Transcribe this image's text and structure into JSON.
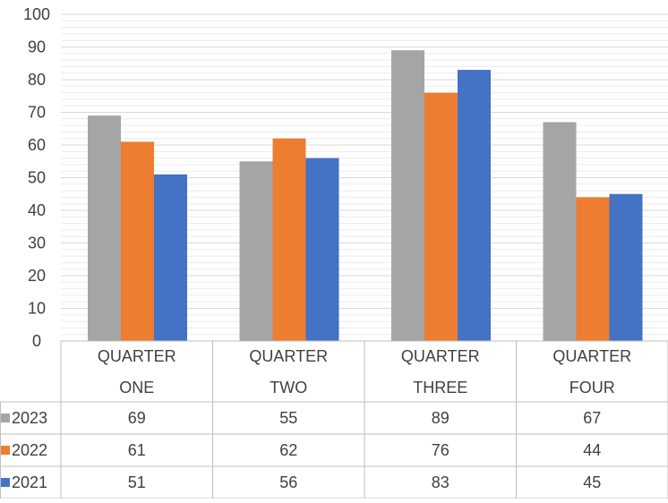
{
  "chart_data": {
    "type": "bar",
    "title": "",
    "xlabel": "",
    "ylabel": "",
    "ylim": [
      0,
      100
    ],
    "ytick_step": 10,
    "yticks": [
      "0",
      "10",
      "20",
      "30",
      "40",
      "50",
      "60",
      "70",
      "80",
      "90",
      "100"
    ],
    "grid": "horizontal major and minor gridlines",
    "legend": "in data table below the chart",
    "categories": [
      [
        "QUARTER",
        "ONE"
      ],
      [
        "QUARTER",
        "TWO"
      ],
      [
        "QUARTER",
        "THREE"
      ],
      [
        "QUARTER",
        "FOUR"
      ]
    ],
    "series": [
      {
        "name": "2023",
        "color": "#a5a5a5",
        "values": [
          69,
          55,
          89,
          67
        ]
      },
      {
        "name": "2022",
        "color": "#ed7d31",
        "values": [
          61,
          62,
          76,
          44
        ]
      },
      {
        "name": "2021",
        "color": "#4472c4",
        "values": [
          51,
          56,
          83,
          45
        ]
      }
    ]
  }
}
